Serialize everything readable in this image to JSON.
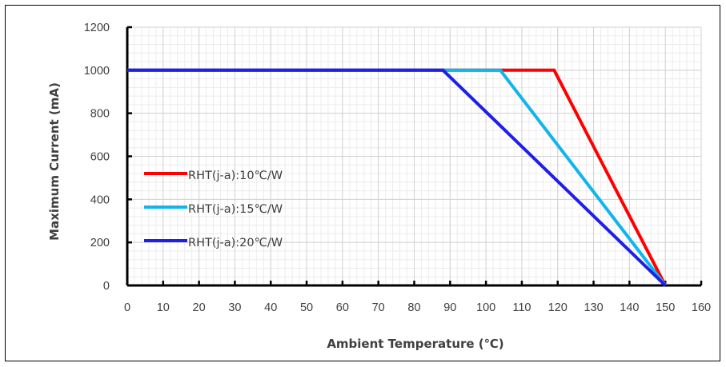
{
  "chart_data": {
    "type": "line",
    "title": "",
    "xlabel": "Ambient Temperature (℃)",
    "ylabel": "Maximum Current (mA)",
    "xlim": [
      0,
      160
    ],
    "ylim": [
      0,
      1200
    ],
    "x_ticks": [
      0,
      10,
      20,
      30,
      40,
      50,
      60,
      70,
      80,
      90,
      100,
      110,
      120,
      130,
      140,
      150,
      160
    ],
    "y_ticks": [
      0,
      200,
      400,
      600,
      800,
      1000,
      1200
    ],
    "grid": true,
    "legend_position": "left-middle",
    "series": [
      {
        "name": "RHT(j-a):10℃/W",
        "color": "#ff0000",
        "x": [
          0,
          119,
          150
        ],
        "y": [
          1000,
          1000,
          0
        ]
      },
      {
        "name": "RHT(j-a):15℃/W",
        "color": "#12b4ee",
        "x": [
          0,
          104,
          150
        ],
        "y": [
          1000,
          1000,
          0
        ]
      },
      {
        "name": "RHT(j-a):20℃/W",
        "color": "#1f1fe6",
        "x": [
          0,
          88,
          150
        ],
        "y": [
          1000,
          1000,
          0
        ]
      }
    ]
  }
}
